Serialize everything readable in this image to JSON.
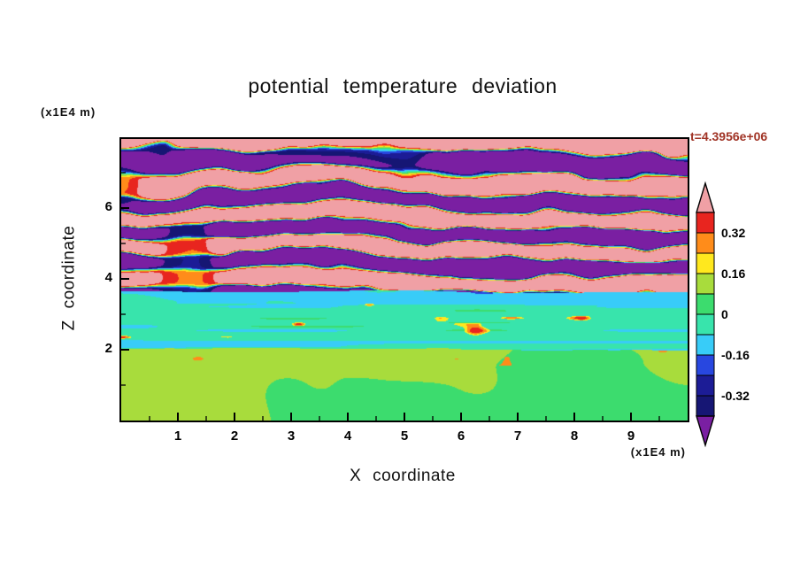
{
  "colors": {
    "background": "#ffffff",
    "frame": "#000000",
    "text": "#111111",
    "timestamp": "#a03325"
  },
  "timestamp": "t=4.3956e+06",
  "axes": {
    "x": {
      "title": "X coordinate",
      "unit_label": "(x1E4 m)"
    },
    "z": {
      "title": "Z coordinate",
      "unit_label": "(x1E4 m)"
    }
  },
  "chart_data": {
    "type": "heatmap",
    "title": "potential temperature deviation",
    "xlabel": "X coordinate",
    "ylabel": "Z coordinate",
    "x_unit": "x1E4 m",
    "z_unit": "x1E4 m",
    "x_range": [
      0,
      10
    ],
    "z_range": [
      0,
      7.95
    ],
    "x_ticks": [
      1,
      2,
      3,
      4,
      5,
      6,
      7,
      8,
      9
    ],
    "z_ticks": [
      2,
      4,
      6
    ],
    "time_label": "t=4.3956e+06",
    "contour_interval": 0.08,
    "colorbar": {
      "orientation": "vertical",
      "label_values": [
        "0.32",
        "0.16",
        "0",
        "-0.16",
        "-0.32"
      ],
      "labeled_boundaries": [
        0.32,
        0.16,
        0,
        -0.16,
        -0.32
      ],
      "above": {
        "min": 0.4,
        "color": "#f0a0a5"
      },
      "below": {
        "max": -0.4,
        "color": "#7a1fa2"
      },
      "segments": [
        {
          "min": 0.32,
          "max": 0.4,
          "color": "#e8251f"
        },
        {
          "min": 0.24,
          "max": 0.32,
          "color": "#ff8c1a"
        },
        {
          "min": 0.16,
          "max": 0.24,
          "color": "#ffe81e"
        },
        {
          "min": 0.08,
          "max": 0.16,
          "color": "#a8dc3c"
        },
        {
          "min": 0.0,
          "max": 0.08,
          "color": "#3cdc6e"
        },
        {
          "min": -0.08,
          "max": 0.0,
          "color": "#38e4ac"
        },
        {
          "min": -0.16,
          "max": -0.08,
          "color": "#38ccf8"
        },
        {
          "min": -0.24,
          "max": -0.16,
          "color": "#2847e0"
        },
        {
          "min": -0.32,
          "max": -0.24,
          "color": "#1c1c96"
        },
        {
          "min": -0.4,
          "max": -0.32,
          "color": "#161674"
        }
      ]
    },
    "field_structure": [
      {
        "z_range": [
          0,
          2.0
        ],
        "description": "boundary layer: weakly positive deviation 0 to +0.16 (yellow-green) with green convective plume blobs near 0 and rare warm specks at the layer top"
      },
      {
        "z_range": [
          2.0,
          3.3
        ],
        "description": "stable layer: weakly negative deviation around -0.05 (aquamarine) with long thin horizontal green/cyan stripe filaments and sparse thin warm (red/orange) streak lenses"
      },
      {
        "z_range": [
          3.3,
          3.6
        ],
        "description": "cyan band: deviation roughly -0.08 to -0.24 with scattered deeper blue patches"
      },
      {
        "z_range": [
          3.6,
          7.95
        ],
        "description": "wave-breaking region: alternating wavy horizontal layers exceeding +0.4 (pink) and below -0.4 (purple), separated by thin red-orange-yellow-green-cyan-blue transition filaments; pink dominates near the top"
      }
    ]
  }
}
